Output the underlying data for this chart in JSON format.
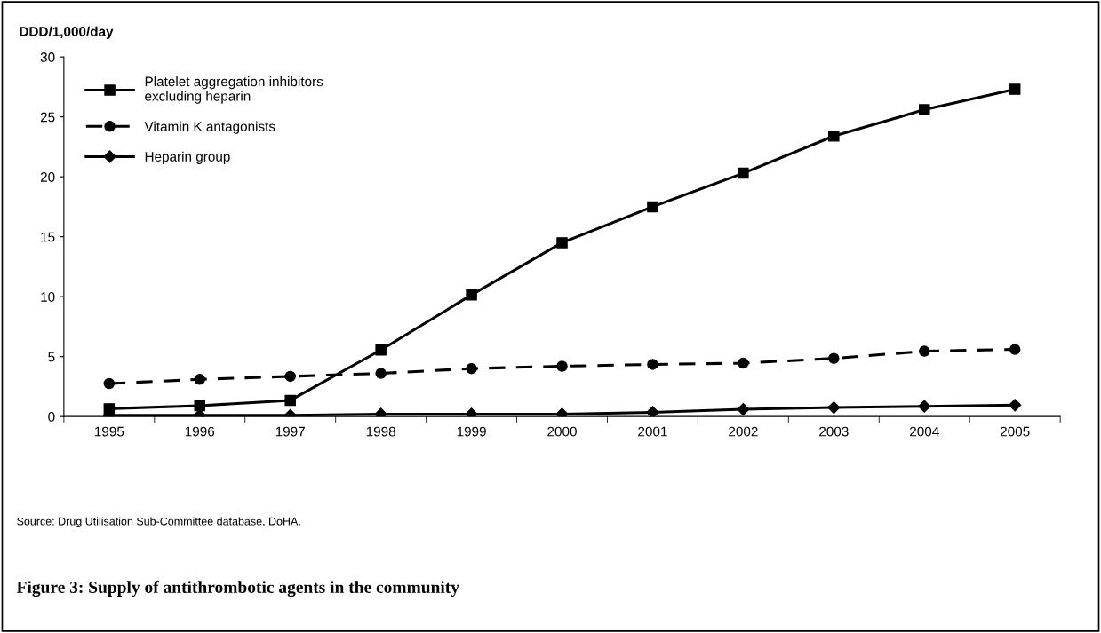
{
  "chart_data": {
    "type": "line",
    "title": "Figure 3: Supply of antithrombotic agents in the community",
    "ylabel": "DDD/1,000/day",
    "annotations": [
      "Source: Drug Utilisation Sub-Committee database, DoHA."
    ],
    "categories": [
      "1995",
      "1996",
      "1997",
      "1998",
      "1999",
      "2000",
      "2001",
      "2002",
      "2003",
      "2004",
      "2005"
    ],
    "series": [
      {
        "name": "Platelet aggregation inhibitors\nexcluding heparin",
        "color": "#000000",
        "marker": "square",
        "line_style": "solid",
        "values": [
          0.65,
          0.9,
          1.35,
          5.55,
          10.15,
          14.5,
          17.5,
          20.3,
          23.4,
          25.6,
          27.3
        ]
      },
      {
        "name": "Vitamin K antagonists",
        "color": "#000000",
        "marker": "circle",
        "line_style": "dashed",
        "values": [
          2.75,
          3.1,
          3.35,
          3.6,
          4.0,
          4.2,
          4.35,
          4.45,
          4.85,
          5.45,
          5.6
        ]
      },
      {
        "name": "Heparin group",
        "color": "#000000",
        "marker": "diamond",
        "line_style": "solid",
        "values": [
          0.1,
          0.1,
          0.1,
          0.2,
          0.2,
          0.2,
          0.35,
          0.6,
          0.75,
          0.85,
          0.95
        ]
      }
    ],
    "ylim": [
      0,
      30
    ],
    "yticks": [
      0,
      5,
      10,
      15,
      20,
      25,
      30
    ],
    "grid": false,
    "legend": "top left"
  }
}
